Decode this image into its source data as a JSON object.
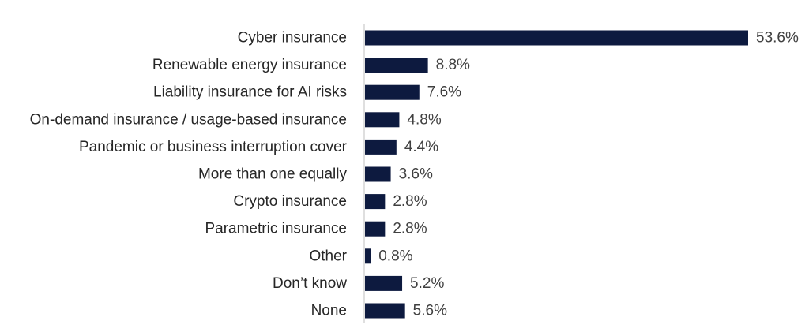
{
  "chart_data": {
    "type": "bar",
    "orientation": "horizontal",
    "title": "",
    "xlabel": "",
    "ylabel": "",
    "categories": [
      "Cyber insurance",
      "Renewable energy insurance",
      "Liability insurance for AI risks",
      "On-demand insurance / usage-based insurance",
      "Pandemic or business interruption cover",
      "More than one equally",
      "Crypto insurance",
      "Parametric insurance",
      "Other",
      "Don’t know",
      "None"
    ],
    "values": [
      53.6,
      8.8,
      7.6,
      4.8,
      4.4,
      3.6,
      2.8,
      2.8,
      0.8,
      5.2,
      5.6
    ],
    "value_labels": [
      "53.6%",
      "8.8%",
      "7.6%",
      "4.8%",
      "4.4%",
      "3.6%",
      "2.8%",
      "2.8%",
      "0.8%",
      "5.2%",
      "5.6%"
    ],
    "xlim": [
      0,
      53.6
    ],
    "grid": false,
    "legend": "none",
    "bar_color": "#0d1a3f",
    "axis_color": "#bfbfbf"
  }
}
